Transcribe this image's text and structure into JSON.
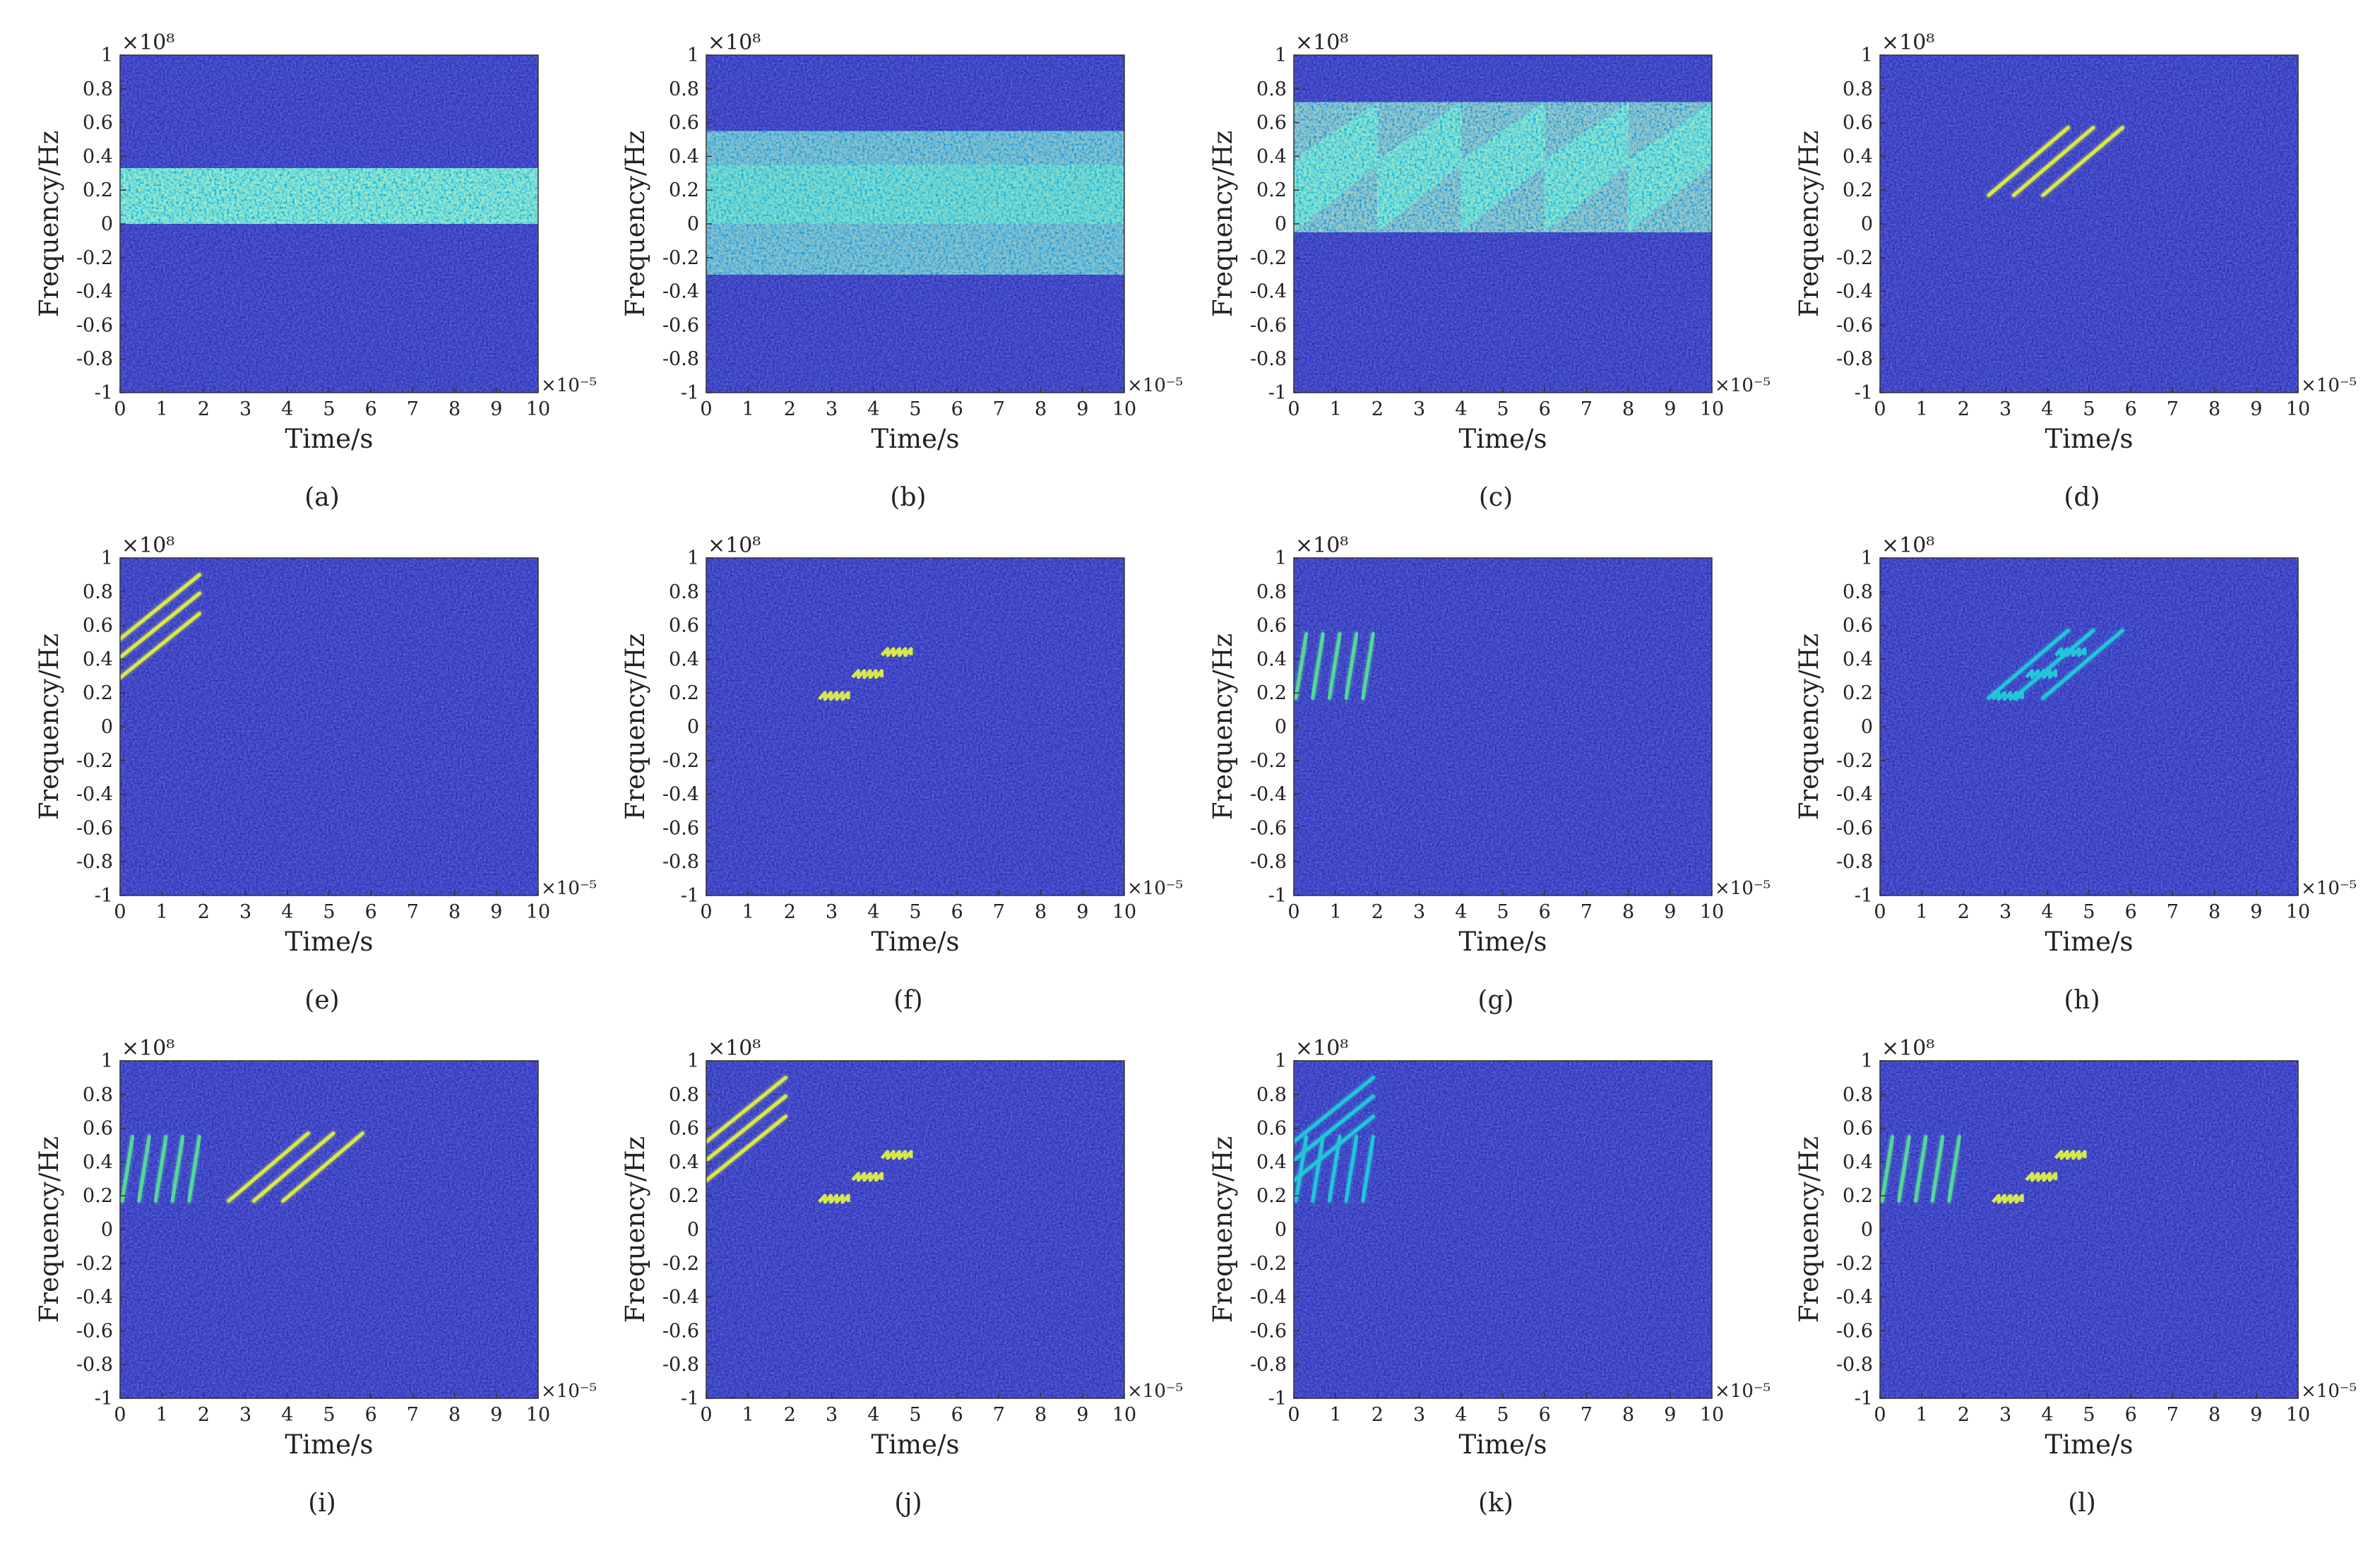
{
  "figure": {
    "colors": {
      "background_low": "#2b2fb8",
      "background_high": "#3a4fd0",
      "signal_cyan": "#22c6d8",
      "signal_green": "#55d89a",
      "signal_yellow": "#d7e84a",
      "axis": "#333333"
    }
  },
  "chart_data": [
    {
      "label": "(a)",
      "type": "heatmap",
      "xlabel": "Time/s",
      "ylabel": "Frequency/Hz",
      "x_exponent": "×10⁻⁵",
      "y_exponent": "×10⁸",
      "xlim": [
        0,
        10
      ],
      "ylim": [
        -1,
        1
      ],
      "xticks": [
        "0",
        "1",
        "2",
        "3",
        "4",
        "5",
        "6",
        "7",
        "8",
        "9",
        "10"
      ],
      "yticks": [
        "1",
        "0.8",
        "0.6",
        "0.4",
        "0.2",
        "0",
        "-0.2",
        "-0.4",
        "-0.6",
        "-0.8",
        "-1"
      ],
      "features": [
        {
          "kind": "band",
          "t": [
            0,
            10
          ],
          "f": [
            0,
            0.33
          ],
          "color": "cyan",
          "noisy": true
        }
      ]
    },
    {
      "label": "(b)",
      "type": "heatmap",
      "xlabel": "Time/s",
      "ylabel": "Frequency/Hz",
      "x_exponent": "×10⁻⁵",
      "y_exponent": "×10⁸",
      "xlim": [
        0,
        10
      ],
      "ylim": [
        -1,
        1
      ],
      "xticks": [
        "0",
        "1",
        "2",
        "3",
        "4",
        "5",
        "6",
        "7",
        "8",
        "9",
        "10"
      ],
      "yticks": [
        "1",
        "0.8",
        "0.6",
        "0.4",
        "0.2",
        "0",
        "-0.2",
        "-0.4",
        "-0.6",
        "-0.8",
        "-1"
      ],
      "features": [
        {
          "kind": "noise_band",
          "t": [
            0,
            10
          ],
          "f": [
            -0.3,
            0.55
          ],
          "core": [
            0,
            0.35
          ],
          "color": "cyan"
        }
      ]
    },
    {
      "label": "(c)",
      "type": "heatmap",
      "xlabel": "Time/s",
      "ylabel": "Frequency/Hz",
      "x_exponent": "×10⁻⁵",
      "y_exponent": "×10⁸",
      "xlim": [
        0,
        10
      ],
      "ylim": [
        -1,
        1
      ],
      "xticks": [
        "0",
        "1",
        "2",
        "3",
        "4",
        "5",
        "6",
        "7",
        "8",
        "9",
        "10"
      ],
      "yticks": [
        "1",
        "0.8",
        "0.6",
        "0.4",
        "0.2",
        "0",
        "-0.2",
        "-0.4",
        "-0.6",
        "-0.8",
        "-1"
      ],
      "features": [
        {
          "kind": "sweep_block",
          "t0": 0,
          "t1": 2,
          "f_low": [
            -0.05,
            0.35
          ],
          "f_high": [
            0.38,
            0.72
          ]
        },
        {
          "kind": "sweep_block",
          "t0": 2,
          "t1": 4,
          "f_low": [
            -0.05,
            0.35
          ],
          "f_high": [
            0.38,
            0.72
          ]
        },
        {
          "kind": "sweep_block",
          "t0": 4,
          "t1": 6,
          "f_low": [
            -0.05,
            0.35
          ],
          "f_high": [
            0.38,
            0.72
          ]
        },
        {
          "kind": "sweep_block",
          "t0": 6,
          "t1": 8,
          "f_low": [
            -0.05,
            0.35
          ],
          "f_high": [
            0.38,
            0.72
          ]
        },
        {
          "kind": "sweep_block",
          "t0": 8,
          "t1": 10,
          "f_low": [
            -0.05,
            0.35
          ],
          "f_high": [
            0.38,
            0.72
          ]
        }
      ]
    },
    {
      "label": "(d)",
      "type": "heatmap",
      "xlabel": "Time/s",
      "ylabel": "Frequency/Hz",
      "x_exponent": "×10⁻⁵",
      "y_exponent": "×10⁸",
      "xlim": [
        0,
        10
      ],
      "ylim": [
        -1,
        1
      ],
      "xticks": [
        "0",
        "1",
        "2",
        "3",
        "4",
        "5",
        "6",
        "7",
        "8",
        "9",
        "10"
      ],
      "yticks": [
        "1",
        "0.8",
        "0.6",
        "0.4",
        "0.2",
        "0",
        "-0.2",
        "-0.4",
        "-0.6",
        "-0.8",
        "-1"
      ],
      "features": [
        {
          "kind": "line",
          "t": [
            2.6,
            4.5
          ],
          "f": [
            0.17,
            0.57
          ],
          "color": "yellow"
        },
        {
          "kind": "line",
          "t": [
            3.2,
            5.1
          ],
          "f": [
            0.17,
            0.57
          ],
          "color": "yellow"
        },
        {
          "kind": "line",
          "t": [
            3.9,
            5.8
          ],
          "f": [
            0.17,
            0.57
          ],
          "color": "yellow"
        }
      ]
    },
    {
      "label": "(e)",
      "type": "heatmap",
      "xlabel": "Time/s",
      "ylabel": "Frequency/Hz",
      "x_exponent": "×10⁻⁵",
      "y_exponent": "×10⁸",
      "xlim": [
        0,
        10
      ],
      "ylim": [
        -1,
        1
      ],
      "xticks": [
        "0",
        "1",
        "2",
        "3",
        "4",
        "5",
        "6",
        "7",
        "8",
        "9",
        "10"
      ],
      "yticks": [
        "1",
        "0.8",
        "0.6",
        "0.4",
        "0.2",
        "0",
        "-0.2",
        "-0.4",
        "-0.6",
        "-0.8",
        "-1"
      ],
      "features": [
        {
          "kind": "line",
          "t": [
            0,
            1.9
          ],
          "f": [
            0.52,
            0.9
          ],
          "color": "yellow"
        },
        {
          "kind": "line",
          "t": [
            0,
            1.9
          ],
          "f": [
            0.41,
            0.79
          ],
          "color": "yellow"
        },
        {
          "kind": "line",
          "t": [
            0,
            1.9
          ],
          "f": [
            0.29,
            0.67
          ],
          "color": "yellow"
        }
      ]
    },
    {
      "label": "(f)",
      "type": "heatmap",
      "xlabel": "Time/s",
      "ylabel": "Frequency/Hz",
      "x_exponent": "×10⁻⁵",
      "y_exponent": "×10⁸",
      "xlim": [
        0,
        10
      ],
      "ylim": [
        -1,
        1
      ],
      "xticks": [
        "0",
        "1",
        "2",
        "3",
        "4",
        "5",
        "6",
        "7",
        "8",
        "9",
        "10"
      ],
      "yticks": [
        "1",
        "0.8",
        "0.6",
        "0.4",
        "0.2",
        "0",
        "-0.2",
        "-0.4",
        "-0.6",
        "-0.8",
        "-1"
      ],
      "features": [
        {
          "kind": "hop",
          "t": [
            2.7,
            3.4
          ],
          "f": 0.18,
          "color": "yellow"
        },
        {
          "kind": "hop",
          "t": [
            3.5,
            4.2
          ],
          "f": 0.31,
          "color": "yellow"
        },
        {
          "kind": "hop",
          "t": [
            4.2,
            4.9
          ],
          "f": 0.44,
          "color": "yellow"
        }
      ]
    },
    {
      "label": "(g)",
      "type": "heatmap",
      "xlabel": "Time/s",
      "ylabel": "Frequency/Hz",
      "x_exponent": "×10⁻⁵",
      "y_exponent": "×10⁸",
      "xlim": [
        0,
        10
      ],
      "ylim": [
        -1,
        1
      ],
      "xticks": [
        "0",
        "1",
        "2",
        "3",
        "4",
        "5",
        "6",
        "7",
        "8",
        "9",
        "10"
      ],
      "yticks": [
        "1",
        "0.8",
        "0.6",
        "0.4",
        "0.2",
        "0",
        "-0.2",
        "-0.4",
        "-0.6",
        "-0.8",
        "-1"
      ],
      "features": [
        {
          "kind": "line",
          "t": [
            0.05,
            0.3
          ],
          "f": [
            0.17,
            0.55
          ],
          "color": "green"
        },
        {
          "kind": "line",
          "t": [
            0.45,
            0.7
          ],
          "f": [
            0.17,
            0.55
          ],
          "color": "green"
        },
        {
          "kind": "line",
          "t": [
            0.85,
            1.1
          ],
          "f": [
            0.17,
            0.55
          ],
          "color": "green"
        },
        {
          "kind": "line",
          "t": [
            1.25,
            1.5
          ],
          "f": [
            0.17,
            0.55
          ],
          "color": "green"
        },
        {
          "kind": "line",
          "t": [
            1.65,
            1.9
          ],
          "f": [
            0.17,
            0.55
          ],
          "color": "green"
        }
      ]
    },
    {
      "label": "(h)",
      "type": "heatmap",
      "xlabel": "Time/s",
      "ylabel": "Frequency/Hz",
      "x_exponent": "×10⁻⁵",
      "y_exponent": "×10⁸",
      "xlim": [
        0,
        10
      ],
      "ylim": [
        -1,
        1
      ],
      "xticks": [
        "0",
        "1",
        "2",
        "3",
        "4",
        "5",
        "6",
        "7",
        "8",
        "9",
        "10"
      ],
      "yticks": [
        "1",
        "0.8",
        "0.6",
        "0.4",
        "0.2",
        "0",
        "-0.2",
        "-0.4",
        "-0.6",
        "-0.8",
        "-1"
      ],
      "features": [
        {
          "kind": "line",
          "t": [
            2.6,
            4.5
          ],
          "f": [
            0.17,
            0.57
          ],
          "color": "cyan"
        },
        {
          "kind": "line",
          "t": [
            3.2,
            5.1
          ],
          "f": [
            0.17,
            0.57
          ],
          "color": "cyan"
        },
        {
          "kind": "line",
          "t": [
            3.9,
            5.8
          ],
          "f": [
            0.17,
            0.57
          ],
          "color": "cyan"
        },
        {
          "kind": "hop",
          "t": [
            2.7,
            3.4
          ],
          "f": 0.18,
          "color": "cyan"
        },
        {
          "kind": "hop",
          "t": [
            3.5,
            4.2
          ],
          "f": 0.31,
          "color": "cyan"
        },
        {
          "kind": "hop",
          "t": [
            4.2,
            4.9
          ],
          "f": 0.44,
          "color": "cyan"
        }
      ]
    },
    {
      "label": "(i)",
      "type": "heatmap",
      "xlabel": "Time/s",
      "ylabel": "Frequency/Hz",
      "x_exponent": "×10⁻⁵",
      "y_exponent": "×10⁸",
      "xlim": [
        0,
        10
      ],
      "ylim": [
        -1,
        1
      ],
      "xticks": [
        "0",
        "1",
        "2",
        "3",
        "4",
        "5",
        "6",
        "7",
        "8",
        "9",
        "10"
      ],
      "yticks": [
        "1",
        "0.8",
        "0.6",
        "0.4",
        "0.2",
        "0",
        "-0.2",
        "-0.4",
        "-0.6",
        "-0.8",
        "-1"
      ],
      "features": [
        {
          "kind": "line",
          "t": [
            0.05,
            0.3
          ],
          "f": [
            0.17,
            0.55
          ],
          "color": "green"
        },
        {
          "kind": "line",
          "t": [
            0.45,
            0.7
          ],
          "f": [
            0.17,
            0.55
          ],
          "color": "green"
        },
        {
          "kind": "line",
          "t": [
            0.85,
            1.1
          ],
          "f": [
            0.17,
            0.55
          ],
          "color": "green"
        },
        {
          "kind": "line",
          "t": [
            1.25,
            1.5
          ],
          "f": [
            0.17,
            0.55
          ],
          "color": "green"
        },
        {
          "kind": "line",
          "t": [
            1.65,
            1.9
          ],
          "f": [
            0.17,
            0.55
          ],
          "color": "green"
        },
        {
          "kind": "line",
          "t": [
            2.6,
            4.5
          ],
          "f": [
            0.17,
            0.57
          ],
          "color": "yellow"
        },
        {
          "kind": "line",
          "t": [
            3.2,
            5.1
          ],
          "f": [
            0.17,
            0.57
          ],
          "color": "yellow"
        },
        {
          "kind": "line",
          "t": [
            3.9,
            5.8
          ],
          "f": [
            0.17,
            0.57
          ],
          "color": "yellow"
        }
      ]
    },
    {
      "label": "(j)",
      "type": "heatmap",
      "xlabel": "Time/s",
      "ylabel": "Frequency/Hz",
      "x_exponent": "×10⁻⁵",
      "y_exponent": "×10⁸",
      "xlim": [
        0,
        10
      ],
      "ylim": [
        -1,
        1
      ],
      "xticks": [
        "0",
        "1",
        "2",
        "3",
        "4",
        "5",
        "6",
        "7",
        "8",
        "9",
        "10"
      ],
      "yticks": [
        "1",
        "0.8",
        "0.6",
        "0.4",
        "0.2",
        "0",
        "-0.2",
        "-0.4",
        "-0.6",
        "-0.8",
        "-1"
      ],
      "features": [
        {
          "kind": "line",
          "t": [
            0,
            1.9
          ],
          "f": [
            0.52,
            0.9
          ],
          "color": "yellow"
        },
        {
          "kind": "line",
          "t": [
            0,
            1.9
          ],
          "f": [
            0.41,
            0.79
          ],
          "color": "yellow"
        },
        {
          "kind": "line",
          "t": [
            0,
            1.9
          ],
          "f": [
            0.29,
            0.67
          ],
          "color": "yellow"
        },
        {
          "kind": "hop",
          "t": [
            2.7,
            3.4
          ],
          "f": 0.18,
          "color": "yellow"
        },
        {
          "kind": "hop",
          "t": [
            3.5,
            4.2
          ],
          "f": 0.31,
          "color": "yellow"
        },
        {
          "kind": "hop",
          "t": [
            4.2,
            4.9
          ],
          "f": 0.44,
          "color": "yellow"
        }
      ]
    },
    {
      "label": "(k)",
      "type": "heatmap",
      "xlabel": "Time/s",
      "ylabel": "Frequency/Hz",
      "x_exponent": "×10⁻⁵",
      "y_exponent": "×10⁸",
      "xlim": [
        0,
        10
      ],
      "ylim": [
        -1,
        1
      ],
      "xticks": [
        "0",
        "1",
        "2",
        "3",
        "4",
        "5",
        "6",
        "7",
        "8",
        "9",
        "10"
      ],
      "yticks": [
        "1",
        "0.8",
        "0.6",
        "0.4",
        "0.2",
        "0",
        "-0.2",
        "-0.4",
        "-0.6",
        "-0.8",
        "-1"
      ],
      "features": [
        {
          "kind": "line",
          "t": [
            0,
            1.9
          ],
          "f": [
            0.52,
            0.9
          ],
          "color": "cyan"
        },
        {
          "kind": "line",
          "t": [
            0,
            1.9
          ],
          "f": [
            0.41,
            0.79
          ],
          "color": "cyan"
        },
        {
          "kind": "line",
          "t": [
            0,
            1.9
          ],
          "f": [
            0.29,
            0.67
          ],
          "color": "cyan"
        },
        {
          "kind": "line",
          "t": [
            0.05,
            0.3
          ],
          "f": [
            0.17,
            0.55
          ],
          "color": "cyan"
        },
        {
          "kind": "line",
          "t": [
            0.45,
            0.7
          ],
          "f": [
            0.17,
            0.55
          ],
          "color": "cyan"
        },
        {
          "kind": "line",
          "t": [
            0.85,
            1.1
          ],
          "f": [
            0.17,
            0.55
          ],
          "color": "cyan"
        },
        {
          "kind": "line",
          "t": [
            1.25,
            1.5
          ],
          "f": [
            0.17,
            0.55
          ],
          "color": "cyan"
        },
        {
          "kind": "line",
          "t": [
            1.65,
            1.9
          ],
          "f": [
            0.17,
            0.55
          ],
          "color": "cyan"
        }
      ]
    },
    {
      "label": "(l)",
      "type": "heatmap",
      "xlabel": "Time/s",
      "ylabel": "Frequency/Hz",
      "x_exponent": "×10⁻⁵",
      "y_exponent": "×10⁸",
      "xlim": [
        0,
        10
      ],
      "ylim": [
        -1,
        1
      ],
      "xticks": [
        "0",
        "1",
        "2",
        "3",
        "4",
        "5",
        "6",
        "7",
        "8",
        "9",
        "10"
      ],
      "yticks": [
        "1",
        "0.8",
        "0.6",
        "0.4",
        "0.2",
        "0",
        "-0.2",
        "-0.4",
        "-0.6",
        "-0.8",
        "-1"
      ],
      "features": [
        {
          "kind": "line",
          "t": [
            0.05,
            0.3
          ],
          "f": [
            0.17,
            0.55
          ],
          "color": "green"
        },
        {
          "kind": "line",
          "t": [
            0.45,
            0.7
          ],
          "f": [
            0.17,
            0.55
          ],
          "color": "green"
        },
        {
          "kind": "line",
          "t": [
            0.85,
            1.1
          ],
          "f": [
            0.17,
            0.55
          ],
          "color": "green"
        },
        {
          "kind": "line",
          "t": [
            1.25,
            1.5
          ],
          "f": [
            0.17,
            0.55
          ],
          "color": "green"
        },
        {
          "kind": "line",
          "t": [
            1.65,
            1.9
          ],
          "f": [
            0.17,
            0.55
          ],
          "color": "green"
        },
        {
          "kind": "hop",
          "t": [
            2.7,
            3.4
          ],
          "f": 0.18,
          "color": "yellow"
        },
        {
          "kind": "hop",
          "t": [
            3.5,
            4.2
          ],
          "f": 0.31,
          "color": "yellow"
        },
        {
          "kind": "hop",
          "t": [
            4.2,
            4.9
          ],
          "f": 0.44,
          "color": "yellow"
        }
      ]
    }
  ]
}
